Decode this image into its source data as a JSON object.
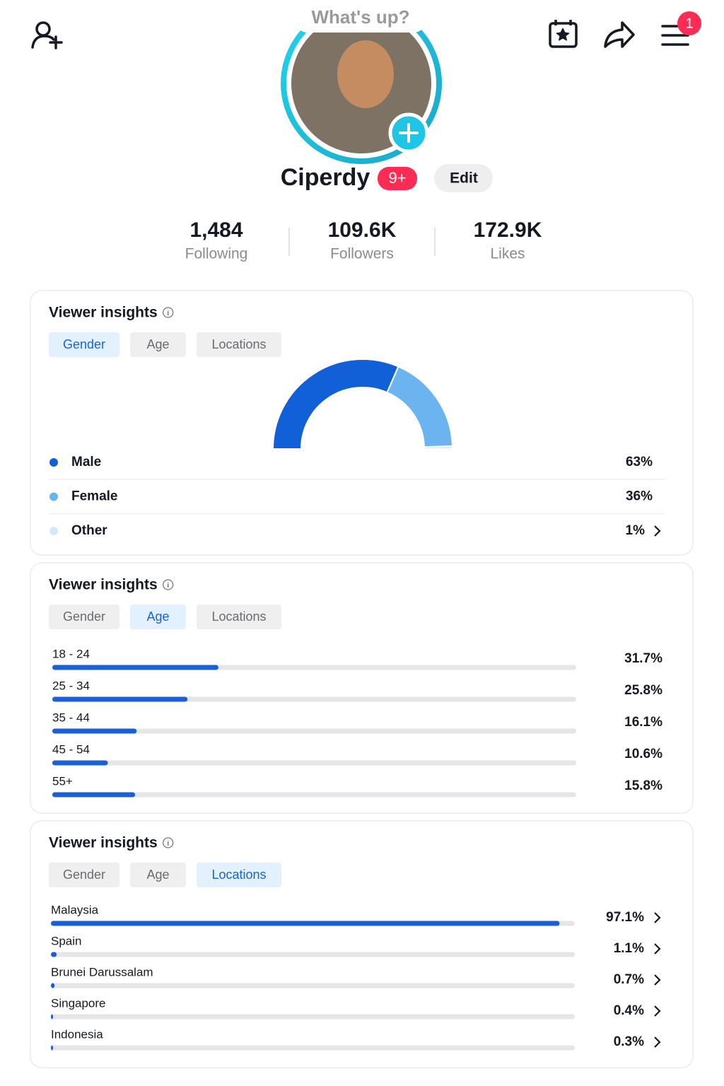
{
  "header": {
    "status_prompt": "What's up?",
    "menu_badge": "1",
    "username": "Ciperdy",
    "inbox_badge": "9+",
    "edit_button": "Edit"
  },
  "stats": [
    {
      "value": "1,484",
      "label": "Following"
    },
    {
      "value": "109.6K",
      "label": "Followers"
    },
    {
      "value": "172.9K",
      "label": "Likes"
    }
  ],
  "cards": [
    {
      "title": "Viewer insights",
      "tabs": [
        "Gender",
        "Age",
        "Locations"
      ],
      "active_tab": 0,
      "chart": {
        "type": "donut",
        "categories": [
          "Male",
          "Female",
          "Other"
        ],
        "values": [
          63,
          36,
          1
        ],
        "value_labels": [
          "63%",
          "36%",
          "1%"
        ],
        "colors": [
          "#1160d8",
          "#6cb4f0",
          "#d3e9fb"
        ]
      }
    },
    {
      "title": "Viewer insights",
      "tabs": [
        "Gender",
        "Age",
        "Locations"
      ],
      "active_tab": 1,
      "chart": {
        "type": "bar",
        "categories": [
          "18 - 24",
          "25 - 34",
          "35 - 44",
          "45 - 54",
          "55+"
        ],
        "values": [
          31.7,
          25.8,
          16.1,
          10.6,
          15.8
        ],
        "value_labels": [
          "31.7%",
          "25.8%",
          "16.1%",
          "10.6%",
          "15.8%"
        ],
        "xlim": [
          0,
          100
        ],
        "color": "#1a5fd6"
      }
    },
    {
      "title": "Viewer insights",
      "tabs": [
        "Gender",
        "Age",
        "Locations"
      ],
      "active_tab": 2,
      "chart": {
        "type": "bar",
        "categories": [
          "Malaysia",
          "Spain",
          "Brunei Darussalam",
          "Singapore",
          "Indonesia"
        ],
        "values": [
          97.1,
          1.1,
          0.7,
          0.4,
          0.3
        ],
        "value_labels": [
          "97.1%",
          "1.1%",
          "0.7%",
          "0.4%",
          "0.3%"
        ],
        "xlim": [
          0,
          100
        ],
        "color": "#1a5fd6"
      }
    }
  ]
}
